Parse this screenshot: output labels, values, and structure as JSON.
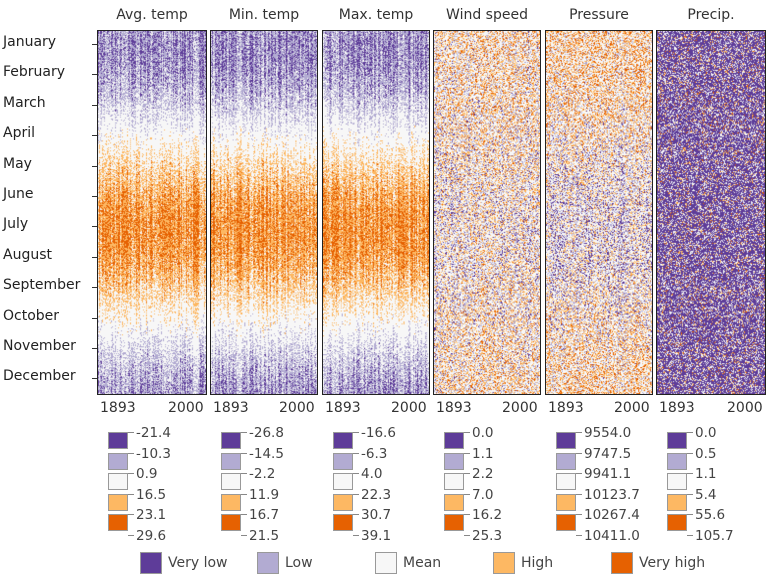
{
  "chart_data": {
    "type": "heatmap",
    "x_range": [
      1893,
      2000
    ],
    "x_tick_labels": [
      "1893",
      "2000"
    ],
    "y_categories": [
      "January",
      "February",
      "March",
      "April",
      "May",
      "June",
      "July",
      "August",
      "September",
      "October",
      "November",
      "December"
    ],
    "classes": [
      {
        "name": "Very low",
        "color": "#5e3c99"
      },
      {
        "name": "Low",
        "color": "#b2abd2"
      },
      {
        "name": "Mean",
        "color": "#f7f7f7"
      },
      {
        "name": "High",
        "color": "#fdb863"
      },
      {
        "name": "Very high",
        "color": "#e66101"
      }
    ],
    "panels": [
      {
        "title": "Avg. temp",
        "breaks": [
          "-21.4",
          "-10.3",
          "0.9",
          "16.5",
          "23.1",
          "29.6"
        ],
        "pattern": "seasonal"
      },
      {
        "title": "Min. temp",
        "breaks": [
          "-26.8",
          "-14.5",
          "-2.2",
          "11.9",
          "16.7",
          "21.5"
        ],
        "pattern": "seasonal"
      },
      {
        "title": "Max. temp",
        "breaks": [
          "-16.6",
          "-6.3",
          "4.0",
          "22.3",
          "30.7",
          "39.1"
        ],
        "pattern": "seasonal"
      },
      {
        "title": "Wind speed",
        "breaks": [
          "0.0",
          "1.1",
          "2.2",
          "7.0",
          "16.2",
          "25.3"
        ],
        "pattern": "noisy"
      },
      {
        "title": "Pressure",
        "breaks": [
          "9554.0",
          "9747.5",
          "9941.1",
          "10123.7",
          "10267.4",
          "10411.0"
        ],
        "pattern": "noisy-winter-high"
      },
      {
        "title": "Precip.",
        "breaks": [
          "0.0",
          "0.5",
          "1.1",
          "5.4",
          "55.6",
          "105.7"
        ],
        "pattern": "mostly-very-low"
      }
    ]
  }
}
